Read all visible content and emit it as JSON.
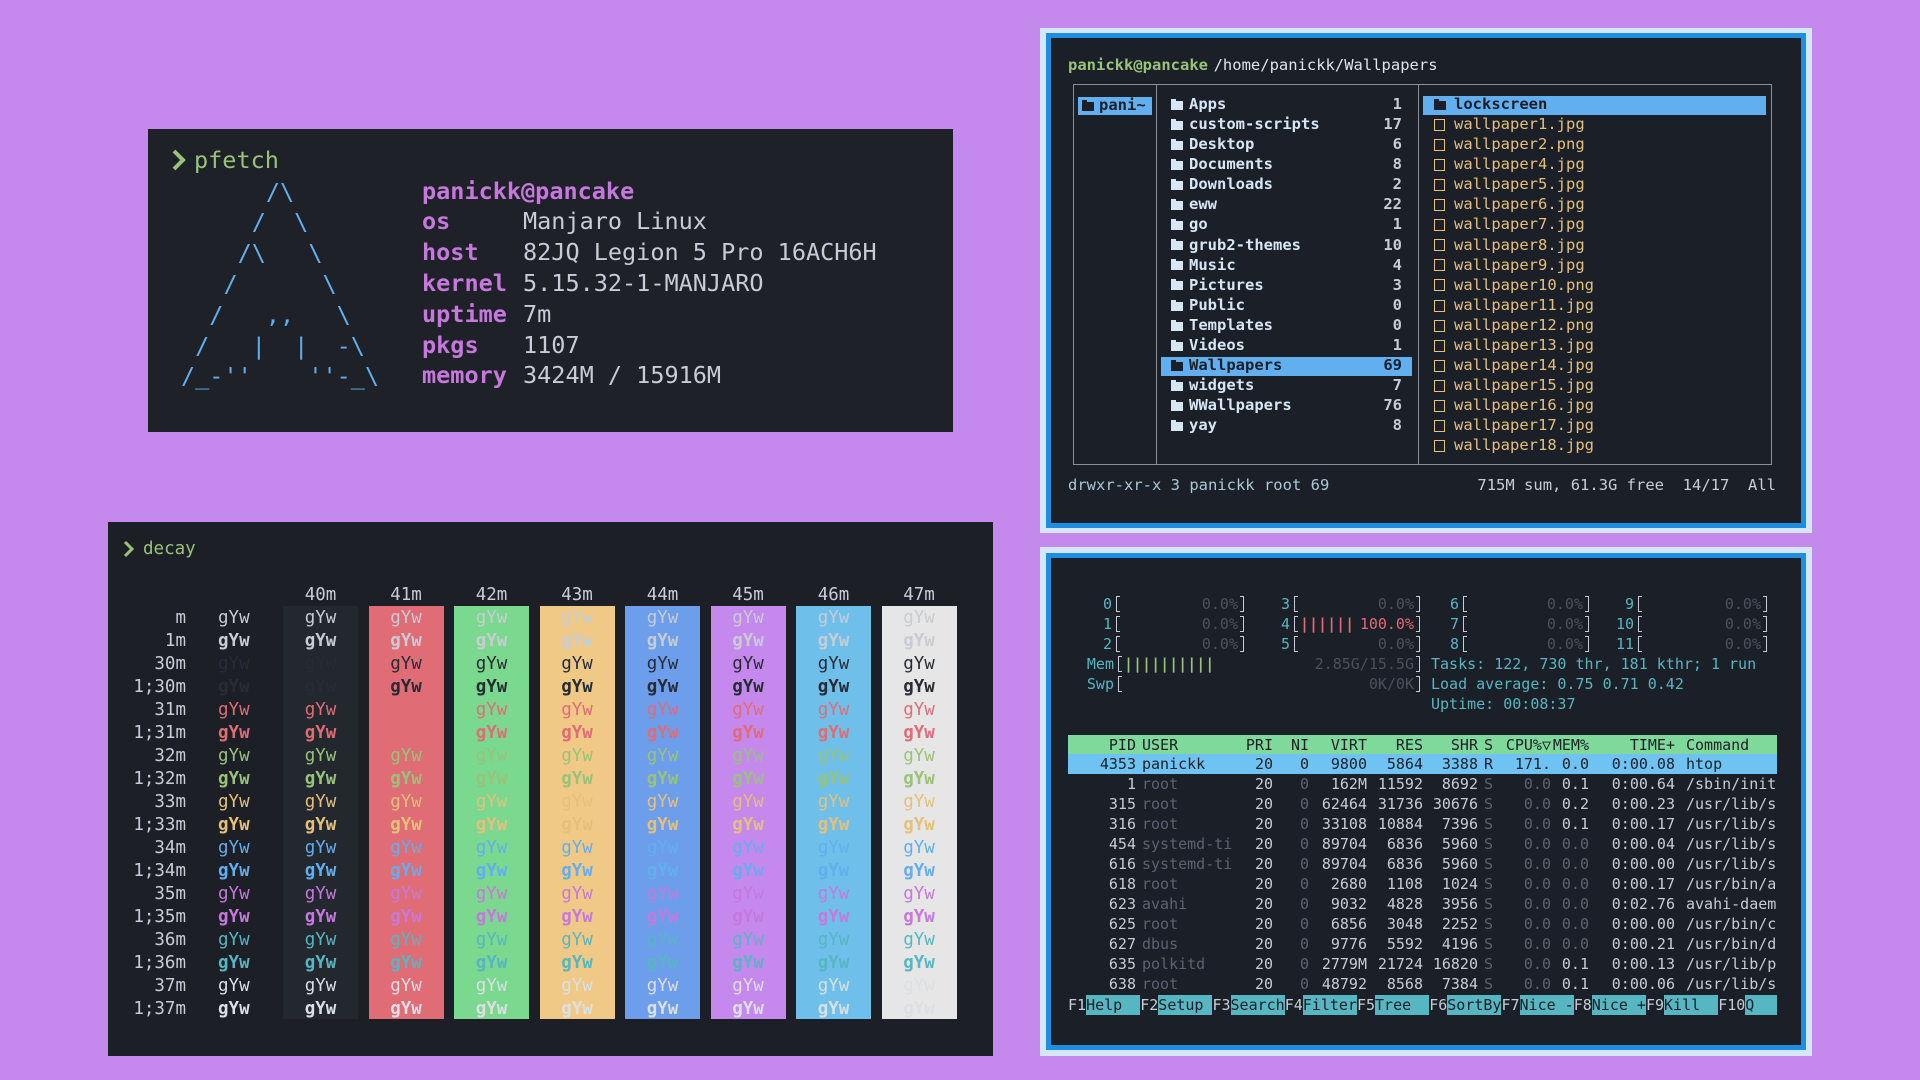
{
  "pfetch": {
    "prompt": "pfetch",
    "logo": [
      "      /\\",
      "     /  \\",
      "    /\\   \\",
      "   /      \\",
      "  /   ,,   \\",
      " /   |  |  -\\",
      "/_-''    ''-_\\"
    ],
    "user": "panickk@pancake",
    "info": [
      {
        "key": "os",
        "value": "Manjaro Linux"
      },
      {
        "key": "host",
        "value": "82JQ Legion 5 Pro 16ACH6H"
      },
      {
        "key": "kernel",
        "value": "5.15.32-1-MANJARO"
      },
      {
        "key": "uptime",
        "value": "7m"
      },
      {
        "key": "pkgs",
        "value": "1107"
      },
      {
        "key": "memory",
        "value": "3424M / 15916M"
      }
    ]
  },
  "decay": {
    "prompt": "decay",
    "sample": "gYw",
    "columns": [
      {
        "name": "40m",
        "color": "#23272e"
      },
      {
        "name": "41m",
        "color": "#e06c75"
      },
      {
        "name": "42m",
        "color": "#7bd88f"
      },
      {
        "name": "43m",
        "color": "#f0c987"
      },
      {
        "name": "44m",
        "color": "#6d9eec"
      },
      {
        "name": "45m",
        "color": "#c589ee"
      },
      {
        "name": "46m",
        "color": "#6ec0ea"
      },
      {
        "name": "47m",
        "color": "#e6e6e6"
      }
    ],
    "rows": [
      {
        "name": "m",
        "color": "#c8ccd4"
      },
      {
        "name": "1m",
        "color": "#c8ccd4",
        "bold": true
      },
      {
        "name": "30m",
        "color": "#272b33"
      },
      {
        "name": "1;30m",
        "color": "#272b33",
        "bold": true
      },
      {
        "name": "31m",
        "color": "#e06c75"
      },
      {
        "name": "1;31m",
        "color": "#e06c75",
        "bold": true
      },
      {
        "name": "32m",
        "color": "#98c379"
      },
      {
        "name": "1;32m",
        "color": "#98c379",
        "bold": true
      },
      {
        "name": "33m",
        "color": "#e5c07b"
      },
      {
        "name": "1;33m",
        "color": "#e5c07b",
        "bold": true
      },
      {
        "name": "34m",
        "color": "#61afef"
      },
      {
        "name": "1;34m",
        "color": "#61afef",
        "bold": true
      },
      {
        "name": "35m",
        "color": "#c678dd"
      },
      {
        "name": "1;35m",
        "color": "#c678dd",
        "bold": true
      },
      {
        "name": "36m",
        "color": "#56b6c2"
      },
      {
        "name": "1;36m",
        "color": "#56b6c2",
        "bold": true
      },
      {
        "name": "37m",
        "color": "#dcdfe4"
      },
      {
        "name": "1;37m",
        "color": "#dcdfe4",
        "bold": true
      }
    ]
  },
  "ranger": {
    "user": "panickk@pancake",
    "path": "/home/panickk/Wallpapers",
    "parent": "pani~",
    "entries": [
      {
        "name": "Apps",
        "count": 1
      },
      {
        "name": "custom-scripts",
        "count": 17
      },
      {
        "name": "Desktop",
        "count": 6
      },
      {
        "name": "Documents",
        "count": 8
      },
      {
        "name": "Downloads",
        "count": 2
      },
      {
        "name": "eww",
        "count": 22
      },
      {
        "name": "go",
        "count": 1
      },
      {
        "name": "grub2-themes",
        "count": 10
      },
      {
        "name": "Music",
        "count": 4
      },
      {
        "name": "Pictures",
        "count": 3
      },
      {
        "name": "Public",
        "count": 0
      },
      {
        "name": "Templates",
        "count": 0
      },
      {
        "name": "Videos",
        "count": 1
      },
      {
        "name": "Wallpapers",
        "count": 69,
        "selected": true
      },
      {
        "name": "widgets",
        "count": 7
      },
      {
        "name": "WWallpapers",
        "count": 76
      },
      {
        "name": "yay",
        "count": 8
      }
    ],
    "files": [
      {
        "name": "lockscreen",
        "type": "dir",
        "selected": true
      },
      {
        "name": "wallpaper1.jpg",
        "type": "image"
      },
      {
        "name": "wallpaper2.png",
        "type": "image"
      },
      {
        "name": "wallpaper4.jpg",
        "type": "image"
      },
      {
        "name": "wallpaper5.jpg",
        "type": "image"
      },
      {
        "name": "wallpaper6.jpg",
        "type": "image"
      },
      {
        "name": "wallpaper7.jpg",
        "type": "image"
      },
      {
        "name": "wallpaper8.jpg",
        "type": "image"
      },
      {
        "name": "wallpaper9.jpg",
        "type": "image"
      },
      {
        "name": "wallpaper10.png",
        "type": "image"
      },
      {
        "name": "wallpaper11.jpg",
        "type": "image"
      },
      {
        "name": "wallpaper12.png",
        "type": "image"
      },
      {
        "name": "wallpaper13.jpg",
        "type": "image"
      },
      {
        "name": "wallpaper14.jpg",
        "type": "image"
      },
      {
        "name": "wallpaper15.jpg",
        "type": "image"
      },
      {
        "name": "wallpaper16.jpg",
        "type": "image"
      },
      {
        "name": "wallpaper17.jpg",
        "type": "image"
      },
      {
        "name": "wallpaper18.jpg",
        "type": "image"
      }
    ],
    "status_left": "drwxr-xr-x 3 panickk root 69",
    "status_right": "715M sum, 61.3G free  14/17  All"
  },
  "htop": {
    "cpus": [
      {
        "id": "0",
        "value": "0.0%"
      },
      {
        "id": "1",
        "value": "0.0%"
      },
      {
        "id": "2",
        "value": "0.0%"
      },
      {
        "id": "3",
        "value": "0.0%"
      },
      {
        "id": "4",
        "bars": "||||||",
        "value": "100.0%"
      },
      {
        "id": "5",
        "value": "0.0%"
      },
      {
        "id": "6",
        "value": "0.0%"
      },
      {
        "id": "7",
        "value": "0.0%"
      },
      {
        "id": "8",
        "value": "0.0%"
      },
      {
        "id": "9",
        "value": "0.0%"
      },
      {
        "id": "10",
        "value": "0.0%"
      },
      {
        "id": "11",
        "value": "0.0%"
      }
    ],
    "mem": {
      "label": "Mem",
      "bars": "||||||||||",
      "value": "2.85G/15.5G"
    },
    "swp": {
      "label": "Swp",
      "value": "0K/0K"
    },
    "tasks": "Tasks: 122, 730 thr, 181 kthr; 1 run",
    "load": "Load average: 0.75 0.71 0.42",
    "uptime": "Uptime: 00:08:37",
    "columns": [
      "PID",
      "USER",
      "PRI",
      "NI",
      "VIRT",
      "RES",
      "SHR",
      "S",
      "CPU%▽",
      "MEM%",
      "TIME+",
      "Command"
    ],
    "selected": 0,
    "processes": [
      [
        "4353",
        "panickk",
        "20",
        "0",
        "9800",
        "5864",
        "3388",
        "R",
        "171.",
        "0.0",
        "0:00.08",
        "htop"
      ],
      [
        "1",
        "root",
        "20",
        "0",
        "162M",
        "11592",
        "8692",
        "S",
        "0.0",
        "0.1",
        "0:00.64",
        "/sbin/init"
      ],
      [
        "315",
        "root",
        "20",
        "0",
        "62464",
        "31736",
        "30676",
        "S",
        "0.0",
        "0.2",
        "0:00.23",
        "/usr/lib/s"
      ],
      [
        "316",
        "root",
        "20",
        "0",
        "33108",
        "10884",
        "7396",
        "S",
        "0.0",
        "0.1",
        "0:00.17",
        "/usr/lib/s"
      ],
      [
        "454",
        "systemd-ti",
        "20",
        "0",
        "89704",
        "6836",
        "5960",
        "S",
        "0.0",
        "0.0",
        "0:00.04",
        "/usr/lib/s"
      ],
      [
        "616",
        "systemd-ti",
        "20",
        "0",
        "89704",
        "6836",
        "5960",
        "S",
        "0.0",
        "0.0",
        "0:00.00",
        "/usr/lib/s"
      ],
      [
        "618",
        "root",
        "20",
        "0",
        "2680",
        "1108",
        "1024",
        "S",
        "0.0",
        "0.0",
        "0:00.17",
        "/usr/bin/a"
      ],
      [
        "623",
        "avahi",
        "20",
        "0",
        "9032",
        "4828",
        "3956",
        "S",
        "0.0",
        "0.0",
        "0:02.76",
        "avahi-daem"
      ],
      [
        "625",
        "root",
        "20",
        "0",
        "6856",
        "3048",
        "2252",
        "S",
        "0.0",
        "0.0",
        "0:00.00",
        "/usr/bin/c"
      ],
      [
        "627",
        "dbus",
        "20",
        "0",
        "9776",
        "5592",
        "4196",
        "S",
        "0.0",
        "0.0",
        "0:00.21",
        "/usr/bin/d"
      ],
      [
        "635",
        "polkitd",
        "20",
        "0",
        "2779M",
        "21724",
        "16820",
        "S",
        "0.0",
        "0.1",
        "0:00.13",
        "/usr/lib/p"
      ],
      [
        "638",
        "root",
        "20",
        "0",
        "48792",
        "8568",
        "7384",
        "S",
        "0.0",
        "0.1",
        "0:00.06",
        "/usr/lib/s"
      ]
    ],
    "keys": [
      {
        "key": "F1",
        "label": "Help"
      },
      {
        "key": "F2",
        "label": "Setup"
      },
      {
        "key": "F3",
        "label": "Search"
      },
      {
        "key": "F4",
        "label": "Filter"
      },
      {
        "key": "F5",
        "label": "Tree"
      },
      {
        "key": "F6",
        "label": "SortBy"
      },
      {
        "key": "F7",
        "label": "Nice -"
      },
      {
        "key": "F8",
        "label": "Nice +"
      },
      {
        "key": "F9",
        "label": "Kill"
      },
      {
        "key": "F10",
        "label": "Q"
      }
    ]
  }
}
